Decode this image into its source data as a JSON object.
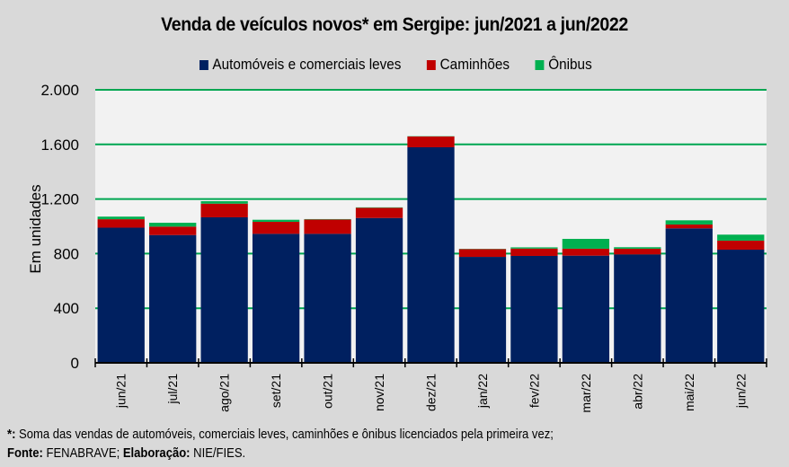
{
  "chart_data": {
    "type": "bar",
    "stacked": true,
    "title": "Venda de veículos novos* em Sergipe: jun/2021 a jun/2022",
    "xlabel": "",
    "ylabel": "Em unidades",
    "ylim": [
      0,
      2000
    ],
    "yticks": [
      0,
      400,
      800,
      1200,
      1600,
      2000
    ],
    "ytick_labels": [
      "0",
      "400",
      "800",
      "1.200",
      "1.600",
      "2.000"
    ],
    "grid": true,
    "legend_position": "top",
    "categories": [
      "jun/21",
      "jul/21",
      "ago/21",
      "set/21",
      "out/21",
      "nov/21",
      "dez/21",
      "jan/22",
      "fev/22",
      "mar/22",
      "abr/22",
      "mai/22",
      "jun/22"
    ],
    "series": [
      {
        "name": "Automóveis e comerciais leves",
        "color": "#002060",
        "values": [
          990,
          936,
          1066,
          945,
          945,
          1061,
          1579,
          776,
          783,
          785,
          794,
          985,
          829
        ]
      },
      {
        "name": "Caminhões",
        "color": "#C00000",
        "values": [
          62,
          62,
          100,
          88,
          105,
          75,
          79,
          57,
          54,
          51,
          42,
          28,
          66
        ]
      },
      {
        "name": "Ônibus",
        "color": "#00B050",
        "values": [
          19,
          28,
          18,
          15,
          3,
          3,
          2,
          2,
          9,
          72,
          11,
          31,
          44
        ]
      }
    ]
  },
  "colors": {
    "background": "#D9D9D9",
    "plot_background": "#F2F2F2",
    "gridline": "#00A651"
  },
  "footer": {
    "note_marker": "*:",
    "note_text": " Soma das vendas de automóveis, comerciais leves, caminhões e ônibus licenciados pela primeira vez;",
    "source_label": "Fonte:",
    "source_value": " FENABRAVE; ",
    "credit_label": "Elaboração:",
    "credit_value": " NIE/FIES."
  }
}
